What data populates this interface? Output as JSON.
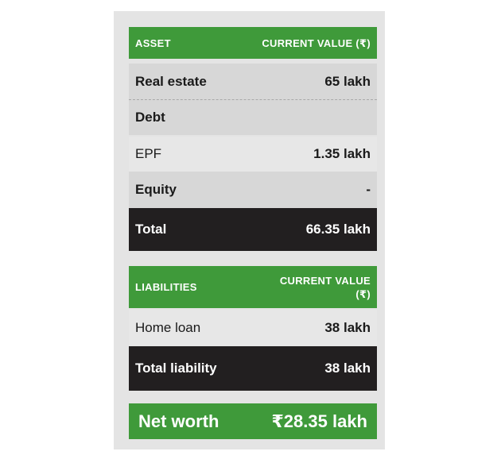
{
  "asset_table": {
    "header": {
      "left": "ASSET",
      "right": "CURRENT VALUE (₹)"
    },
    "rows": [
      {
        "label": "Real estate",
        "value": "65 lakh"
      },
      {
        "label": "Debt",
        "value": ""
      },
      {
        "label": "EPF",
        "value": "1.35 lakh"
      },
      {
        "label": "Equity",
        "value": "-"
      }
    ],
    "total": {
      "label": "Total",
      "value": "66.35 lakh"
    }
  },
  "liabilities_table": {
    "header": {
      "left": "LIABILITIES",
      "right_line1": "CURRENT VALUE",
      "right_line2": "(₹)"
    },
    "rows": [
      {
        "label": "Home loan",
        "value": "38 lakh"
      }
    ],
    "total": {
      "label": "Total liability",
      "value": "38 lakh"
    }
  },
  "net_worth": {
    "label": "Net worth",
    "value": "₹28.35 lakh"
  },
  "colors": {
    "green": "#3f9a3a",
    "dark": "#221f20",
    "grey": "#d7d7d7",
    "light": "#e7e7e7"
  }
}
